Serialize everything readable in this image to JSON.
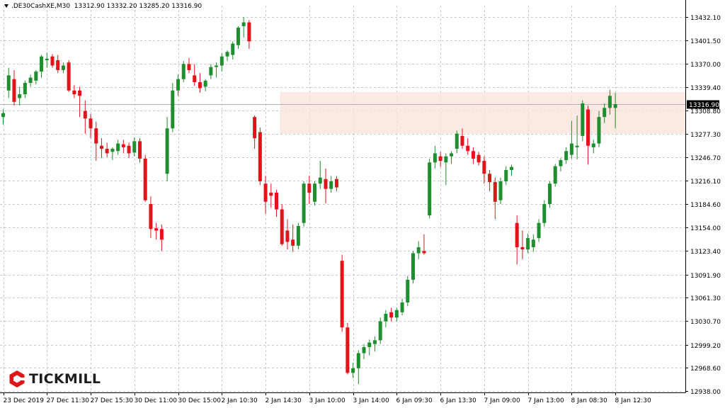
{
  "header": {
    "symbol": ".DE30CashXE,M30",
    "ohlc": "13312.90 13332.20 13285.20 13316.90"
  },
  "logo": {
    "text": "TICKMILL",
    "icon": "tickmill-logo-icon"
  },
  "colors": {
    "bull": "#1e8e2e",
    "bear": "#e1141a",
    "zone": "#f9e2da",
    "grid": "#c8c8c8",
    "price_line": "#b0b0b0",
    "badge_bg": "#000000",
    "badge_fg": "#ffffff"
  },
  "chart_data": {
    "type": "candlestick",
    "title": "",
    "ylim": [
      12930,
      13440
    ],
    "grid": true,
    "y_ticks": [
      "13432.10",
      "13401.50",
      "13370.00",
      "13339.40",
      "13308.80",
      "13277.30",
      "13246.70",
      "13216.10",
      "13184.60",
      "13154.00",
      "13123.40",
      "13091.90",
      "13061.30",
      "13030.70",
      "12999.20",
      "12968.60",
      "12938.00"
    ],
    "x_ticks": [
      {
        "label": "23 Dec 2019",
        "i": 0
      },
      {
        "label": "27 Dec 11:30",
        "i": 8
      },
      {
        "label": "27 Dec 15:30",
        "i": 16
      },
      {
        "label": "30 Dec 11:00",
        "i": 24
      },
      {
        "label": "30 Dec 15:00",
        "i": 32
      },
      {
        "label": "2 Jan 10:30",
        "i": 40
      },
      {
        "label": "2 Jan 14:30",
        "i": 48
      },
      {
        "label": "3 Jan 10:00",
        "i": 56
      },
      {
        "label": "3 Jan 14:00",
        "i": 64
      },
      {
        "label": "6 Jan 09:30",
        "i": 72
      },
      {
        "label": "6 Jan 13:30",
        "i": 80
      },
      {
        "label": "7 Jan 09:00",
        "i": 88
      },
      {
        "label": "7 Jan 13:00",
        "i": 96
      },
      {
        "label": "8 Jan 08:30",
        "i": 104
      },
      {
        "label": "8 Jan 12:30",
        "i": 112
      }
    ],
    "current_price": "13316.90",
    "zone": {
      "from_index": 51,
      "high": 13333,
      "low": 13278
    },
    "candles": [
      [
        13300,
        13310,
        13290,
        13305
      ],
      [
        13335,
        13365,
        13325,
        13355
      ],
      [
        13350,
        13362,
        13315,
        13320
      ],
      [
        13325,
        13340,
        13315,
        13330
      ],
      [
        13330,
        13348,
        13325,
        13345
      ],
      [
        13345,
        13356,
        13340,
        13352
      ],
      [
        13348,
        13362,
        13343,
        13360
      ],
      [
        13360,
        13382,
        13352,
        13380
      ],
      [
        13375,
        13385,
        13365,
        13377
      ],
      [
        13380,
        13383,
        13365,
        13368
      ],
      [
        13375,
        13382,
        13358,
        13362
      ],
      [
        13362,
        13372,
        13358,
        13368
      ],
      [
        13372,
        13375,
        13333,
        13335
      ],
      [
        13335,
        13342,
        13325,
        13330
      ],
      [
        13335,
        13340,
        13300,
        13328
      ],
      [
        13308,
        13322,
        13278,
        13298
      ],
      [
        13298,
        13304,
        13272,
        13285
      ],
      [
        13285,
        13294,
        13242,
        13265
      ],
      [
        13262,
        13272,
        13246,
        13258
      ],
      [
        13258,
        13266,
        13247,
        13252
      ],
      [
        13254,
        13260,
        13243,
        13258
      ],
      [
        13255,
        13270,
        13250,
        13265
      ],
      [
        13264,
        13270,
        13252,
        13260
      ],
      [
        13262,
        13266,
        13246,
        13252
      ],
      [
        13253,
        13273,
        13248,
        13268
      ],
      [
        13268,
        13272,
        13240,
        13245
      ],
      [
        13245,
        13250,
        13188,
        13190
      ],
      [
        13185,
        13195,
        13140,
        13152
      ],
      [
        13153,
        13160,
        13138,
        13150
      ],
      [
        13152,
        13158,
        13123,
        13138
      ],
      [
        13225,
        13300,
        13215,
        13285
      ],
      [
        13285,
        13345,
        13280,
        13335
      ],
      [
        13335,
        13356,
        13328,
        13350
      ],
      [
        13350,
        13374,
        13346,
        13370
      ],
      [
        13370,
        13378,
        13358,
        13362
      ],
      [
        13355,
        13370,
        13341,
        13346
      ],
      [
        13346,
        13358,
        13332,
        13338
      ],
      [
        13340,
        13350,
        13334,
        13348
      ],
      [
        13355,
        13370,
        13350,
        13366
      ],
      [
        13366,
        13372,
        13352,
        13368
      ],
      [
        13368,
        13384,
        13360,
        13380
      ],
      [
        13380,
        13388,
        13374,
        13386
      ],
      [
        13382,
        13400,
        13376,
        13397
      ],
      [
        13395,
        13420,
        13390,
        13418
      ],
      [
        13420,
        13432,
        13405,
        13425
      ],
      [
        13425,
        13428,
        13390,
        13400
      ],
      [
        13300,
        13302,
        13258,
        13272
      ],
      [
        13280,
        13286,
        13210,
        13215
      ],
      [
        13212,
        13222,
        13172,
        13188
      ],
      [
        13200,
        13212,
        13180,
        13196
      ],
      [
        13200,
        13204,
        13168,
        13178
      ],
      [
        13178,
        13185,
        13130,
        13132
      ],
      [
        13150,
        13165,
        13125,
        13135
      ],
      [
        13138,
        13158,
        13122,
        13130
      ],
      [
        13130,
        13160,
        13125,
        13156
      ],
      [
        13160,
        13215,
        13155,
        13212
      ],
      [
        13212,
        13222,
        13185,
        13200
      ],
      [
        13188,
        13215,
        13183,
        13212
      ],
      [
        13212,
        13242,
        13205,
        13220
      ],
      [
        13218,
        13232,
        13186,
        13205
      ],
      [
        13205,
        13222,
        13200,
        13215
      ],
      [
        13218,
        13222,
        13202,
        13207
      ],
      [
        13110,
        13118,
        13016,
        13022
      ],
      [
        13022,
        13028,
        12960,
        12962
      ],
      [
        12962,
        12975,
        12955,
        12968
      ],
      [
        12968,
        12992,
        12947,
        12988
      ],
      [
        12988,
        13000,
        12980,
        12996
      ],
      [
        12996,
        13006,
        12985,
        13002
      ],
      [
        13000,
        13010,
        12990,
        13005
      ],
      [
        13005,
        13035,
        13000,
        13030
      ],
      [
        13030,
        13045,
        13022,
        13040
      ],
      [
        13042,
        13048,
        13030,
        13035
      ],
      [
        13035,
        13048,
        13030,
        13045
      ],
      [
        13042,
        13060,
        13038,
        13055
      ],
      [
        13055,
        13090,
        13050,
        13085
      ],
      [
        13085,
        13123,
        13080,
        13120
      ],
      [
        13120,
        13136,
        13112,
        13128
      ],
      [
        13123,
        13145,
        13118,
        13120
      ],
      [
        13170,
        13245,
        13166,
        13240
      ],
      [
        13240,
        13262,
        13232,
        13252
      ],
      [
        13248,
        13254,
        13234,
        13242
      ],
      [
        13240,
        13252,
        13210,
        13248
      ],
      [
        13248,
        13255,
        13238,
        13252
      ],
      [
        13258,
        13282,
        13252,
        13278
      ],
      [
        13275,
        13285,
        13258,
        13262
      ],
      [
        13262,
        13272,
        13250,
        13255
      ],
      [
        13255,
        13260,
        13238,
        13245
      ],
      [
        13250,
        13254,
        13236,
        13240
      ],
      [
        13242,
        13248,
        13212,
        13225
      ],
      [
        13225,
        13230,
        13202,
        13214
      ],
      [
        13214,
        13220,
        13165,
        13188
      ],
      [
        13190,
        13220,
        13185,
        13215
      ],
      [
        13215,
        13235,
        13210,
        13230
      ],
      [
        13230,
        13237,
        13222,
        13234
      ],
      [
        13160,
        13170,
        13105,
        13128
      ],
      [
        13128,
        13150,
        13112,
        13125
      ],
      [
        13125,
        13146,
        13120,
        13140
      ],
      [
        13128,
        13145,
        13122,
        13138
      ],
      [
        13140,
        13165,
        13135,
        13160
      ],
      [
        13160,
        13190,
        13155,
        13185
      ],
      [
        13185,
        13215,
        13180,
        13212
      ],
      [
        13212,
        13238,
        13208,
        13235
      ],
      [
        13235,
        13246,
        13228,
        13243
      ],
      [
        13243,
        13260,
        13238,
        13255
      ],
      [
        13250,
        13295,
        13245,
        13265
      ],
      [
        13260,
        13302,
        13244,
        13262
      ],
      [
        13275,
        13322,
        13268,
        13318
      ],
      [
        13310,
        13315,
        13237,
        13262
      ],
      [
        13260,
        13270,
        13252,
        13265
      ],
      [
        13265,
        13308,
        13260,
        13300
      ],
      [
        13300,
        13318,
        13292,
        13312
      ],
      [
        13312,
        13336,
        13303,
        13328
      ],
      [
        13312,
        13332,
        13285,
        13317
      ]
    ]
  }
}
